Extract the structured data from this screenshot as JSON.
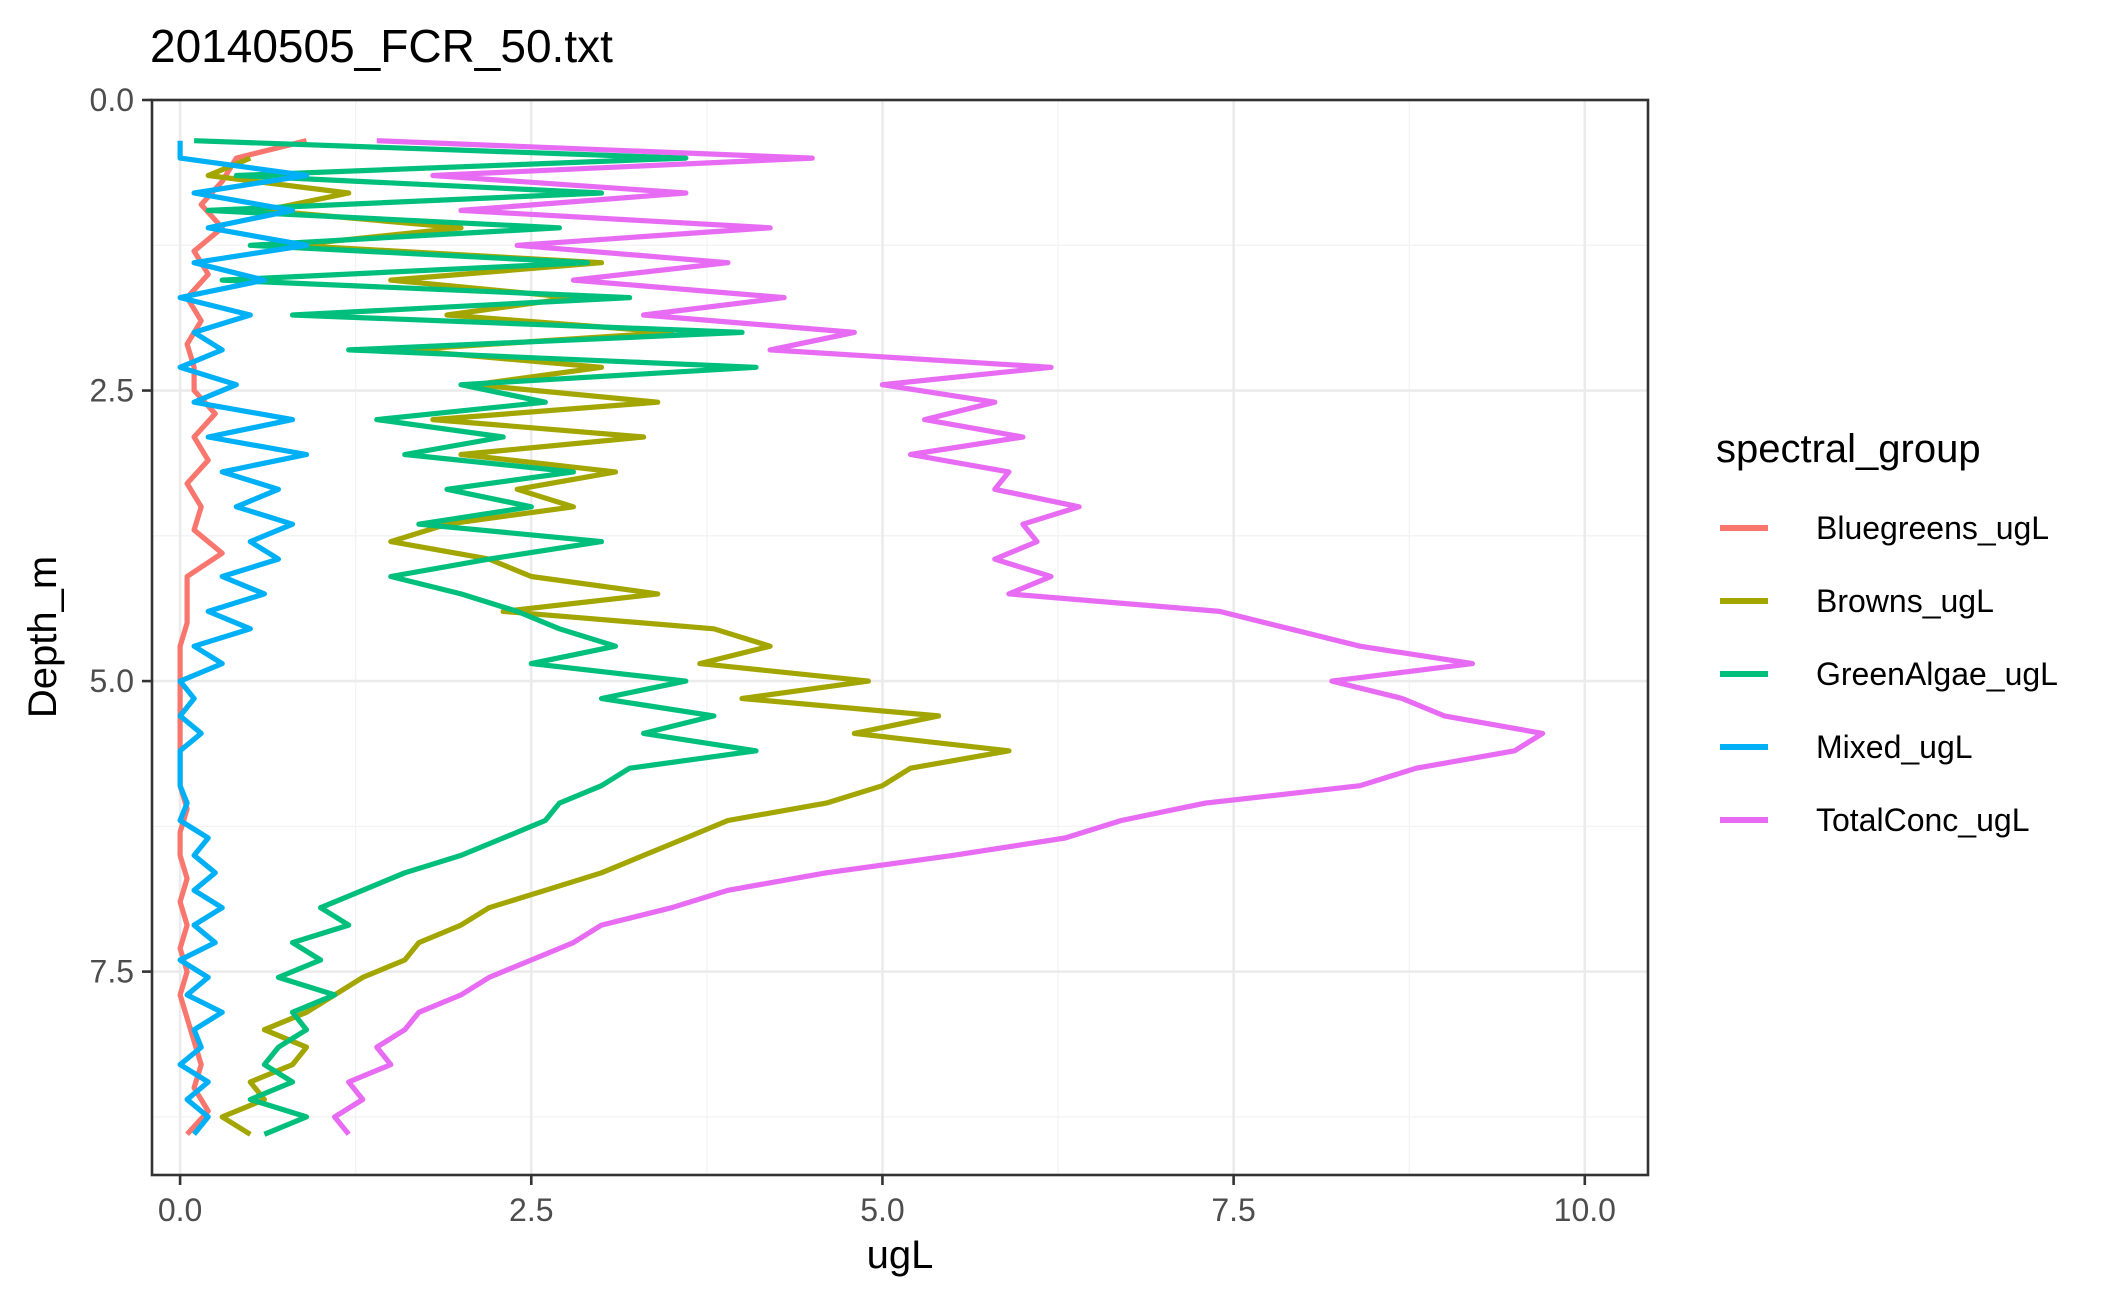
{
  "chart_data": {
    "type": "line",
    "title": "20140505_FCR_50.txt",
    "xlabel": "ugL",
    "ylabel": "Depth_m",
    "xlim": [
      -0.2,
      10.45
    ],
    "ylim": [
      0,
      9.25
    ],
    "y_reversed": true,
    "x_ticks": [
      0,
      2.5,
      5,
      7.5,
      10
    ],
    "x_tick_labels": [
      "0.0",
      "2.5",
      "5.0",
      "7.5",
      "10.0"
    ],
    "y_ticks": [
      0,
      2.5,
      5,
      7.5
    ],
    "y_tick_labels": [
      "0.0",
      "2.5",
      "5.0",
      "7.5"
    ],
    "grid": true,
    "legend_title": "spectral_group",
    "legend_position": "right",
    "series": [
      {
        "name": "Bluegreens_ugL",
        "color": "#F8766D",
        "depth": [
          0.35,
          0.5,
          0.7,
          0.9,
          1.1,
          1.3,
          1.5,
          1.7,
          1.9,
          2.1,
          2.3,
          2.5,
          2.7,
          2.9,
          3.1,
          3.3,
          3.5,
          3.7,
          3.9,
          4.1,
          4.3,
          4.5,
          4.7,
          4.9,
          5.1,
          5.3,
          5.5,
          5.7,
          5.9,
          6.1,
          6.3,
          6.5,
          6.7,
          6.9,
          7.1,
          7.3,
          7.5,
          7.7,
          7.9,
          8.1,
          8.3,
          8.5,
          8.7,
          8.9
        ],
        "values": [
          0.9,
          0.4,
          0.3,
          0.15,
          0.3,
          0.1,
          0.2,
          0.05,
          0.15,
          0.05,
          0.1,
          0.1,
          0.25,
          0.1,
          0.2,
          0.05,
          0.15,
          0.1,
          0.3,
          0.05,
          0.05,
          0.05,
          0.0,
          0.0,
          0.0,
          0.0,
          0.0,
          0.0,
          0.0,
          0.05,
          0.0,
          0.0,
          0.05,
          0.0,
          0.05,
          0.0,
          0.05,
          0.0,
          0.05,
          0.1,
          0.15,
          0.1,
          0.2,
          0.05
        ]
      },
      {
        "name": "Browns_ugL",
        "color": "#A3A500",
        "depth": [
          0.5,
          0.65,
          0.8,
          0.95,
          1.1,
          1.25,
          1.4,
          1.55,
          1.7,
          1.85,
          2.0,
          2.15,
          2.3,
          2.45,
          2.6,
          2.75,
          2.9,
          3.05,
          3.2,
          3.35,
          3.5,
          3.65,
          3.8,
          3.95,
          4.1,
          4.25,
          4.4,
          4.55,
          4.7,
          4.85,
          5.0,
          5.15,
          5.3,
          5.45,
          5.6,
          5.75,
          5.9,
          6.05,
          6.2,
          6.35,
          6.5,
          6.65,
          6.8,
          6.95,
          7.1,
          7.25,
          7.4,
          7.55,
          7.7,
          7.85,
          8.0,
          8.15,
          8.3,
          8.45,
          8.6,
          8.75,
          8.9
        ],
        "values": [
          0.5,
          0.2,
          1.2,
          0.6,
          2.0,
          0.8,
          3.0,
          1.5,
          2.8,
          1.9,
          3.5,
          1.6,
          3.0,
          2.1,
          3.4,
          1.8,
          3.3,
          2.0,
          3.1,
          2.4,
          2.8,
          1.9,
          1.5,
          2.2,
          2.5,
          3.4,
          2.3,
          3.8,
          4.2,
          3.7,
          4.9,
          4.0,
          5.4,
          4.8,
          5.9,
          5.2,
          5.0,
          4.6,
          3.9,
          3.6,
          3.3,
          3.0,
          2.6,
          2.2,
          2.0,
          1.7,
          1.6,
          1.3,
          1.1,
          0.9,
          0.6,
          0.9,
          0.8,
          0.5,
          0.6,
          0.3,
          0.5
        ]
      },
      {
        "name": "GreenAlgae_ugL",
        "color": "#00BF7D",
        "depth": [
          0.35,
          0.5,
          0.65,
          0.8,
          0.95,
          1.1,
          1.25,
          1.4,
          1.55,
          1.7,
          1.85,
          2.0,
          2.15,
          2.3,
          2.45,
          2.6,
          2.75,
          2.9,
          3.05,
          3.2,
          3.35,
          3.5,
          3.65,
          3.8,
          3.95,
          4.1,
          4.25,
          4.4,
          4.55,
          4.7,
          4.85,
          5.0,
          5.15,
          5.3,
          5.45,
          5.6,
          5.75,
          5.9,
          6.05,
          6.2,
          6.35,
          6.5,
          6.65,
          6.8,
          6.95,
          7.1,
          7.25,
          7.4,
          7.55,
          7.7,
          7.85,
          8.0,
          8.15,
          8.3,
          8.45,
          8.6,
          8.75,
          8.9
        ],
        "values": [
          0.1,
          3.6,
          0.4,
          3.0,
          0.2,
          2.7,
          0.5,
          2.9,
          0.3,
          3.2,
          0.8,
          4.0,
          1.2,
          4.1,
          2.0,
          2.6,
          1.4,
          2.3,
          1.6,
          2.8,
          1.9,
          2.5,
          1.7,
          3.0,
          2.2,
          1.5,
          2.0,
          2.4,
          2.7,
          3.1,
          2.5,
          3.6,
          3.0,
          3.8,
          3.3,
          4.1,
          3.2,
          3.0,
          2.7,
          2.6,
          2.3,
          2.0,
          1.6,
          1.3,
          1.0,
          1.2,
          0.8,
          1.0,
          0.7,
          1.1,
          0.8,
          0.9,
          0.7,
          0.6,
          0.8,
          0.5,
          0.9,
          0.6
        ]
      },
      {
        "name": "Mixed_ugL",
        "color": "#00B0F6",
        "depth": [
          0.35,
          0.5,
          0.65,
          0.8,
          0.95,
          1.1,
          1.25,
          1.4,
          1.55,
          1.7,
          1.85,
          2.0,
          2.15,
          2.3,
          2.45,
          2.6,
          2.75,
          2.9,
          3.05,
          3.2,
          3.35,
          3.5,
          3.65,
          3.8,
          3.95,
          4.1,
          4.25,
          4.4,
          4.55,
          4.7,
          4.85,
          5.0,
          5.15,
          5.3,
          5.45,
          5.6,
          5.75,
          5.9,
          6.05,
          6.2,
          6.35,
          6.5,
          6.65,
          6.8,
          6.95,
          7.1,
          7.25,
          7.4,
          7.55,
          7.7,
          7.85,
          8.0,
          8.15,
          8.3,
          8.45,
          8.6,
          8.75,
          8.9
        ],
        "values": [
          0.0,
          0.0,
          0.9,
          0.1,
          0.8,
          0.2,
          0.9,
          0.1,
          0.6,
          0.0,
          0.5,
          0.1,
          0.3,
          0.0,
          0.4,
          0.1,
          0.8,
          0.2,
          0.9,
          0.3,
          0.7,
          0.4,
          0.8,
          0.5,
          0.7,
          0.3,
          0.6,
          0.2,
          0.5,
          0.1,
          0.3,
          0.0,
          0.1,
          0.0,
          0.15,
          0.0,
          0.0,
          0.0,
          0.05,
          0.0,
          0.2,
          0.1,
          0.25,
          0.1,
          0.3,
          0.1,
          0.25,
          0.0,
          0.2,
          0.05,
          0.3,
          0.1,
          0.15,
          0.0,
          0.2,
          0.05,
          0.2,
          0.1
        ]
      },
      {
        "name": "TotalConc_ugL",
        "color": "#E76BF3",
        "depth": [
          0.35,
          0.5,
          0.65,
          0.8,
          0.95,
          1.1,
          1.25,
          1.4,
          1.55,
          1.7,
          1.85,
          2.0,
          2.15,
          2.3,
          2.45,
          2.6,
          2.75,
          2.9,
          3.05,
          3.2,
          3.35,
          3.5,
          3.65,
          3.8,
          3.95,
          4.1,
          4.25,
          4.4,
          4.55,
          4.7,
          4.85,
          5.0,
          5.15,
          5.3,
          5.45,
          5.6,
          5.75,
          5.9,
          6.05,
          6.2,
          6.35,
          6.5,
          6.65,
          6.8,
          6.95,
          7.1,
          7.25,
          7.4,
          7.55,
          7.7,
          7.85,
          8.0,
          8.15,
          8.3,
          8.45,
          8.6,
          8.75,
          8.9
        ],
        "values": [
          1.4,
          4.5,
          1.8,
          3.6,
          2.0,
          4.2,
          2.4,
          3.9,
          2.8,
          4.3,
          3.3,
          4.8,
          4.2,
          6.2,
          5.0,
          5.8,
          5.3,
          6.0,
          5.2,
          5.9,
          5.8,
          6.4,
          6.0,
          6.1,
          5.8,
          6.2,
          5.9,
          7.4,
          7.9,
          8.4,
          9.2,
          8.2,
          8.7,
          9.0,
          9.7,
          9.5,
          8.8,
          8.4,
          7.3,
          6.7,
          6.3,
          5.5,
          4.6,
          3.9,
          3.5,
          3.0,
          2.8,
          2.5,
          2.2,
          2.0,
          1.7,
          1.6,
          1.4,
          1.5,
          1.2,
          1.3,
          1.1,
          1.2
        ]
      }
    ]
  }
}
